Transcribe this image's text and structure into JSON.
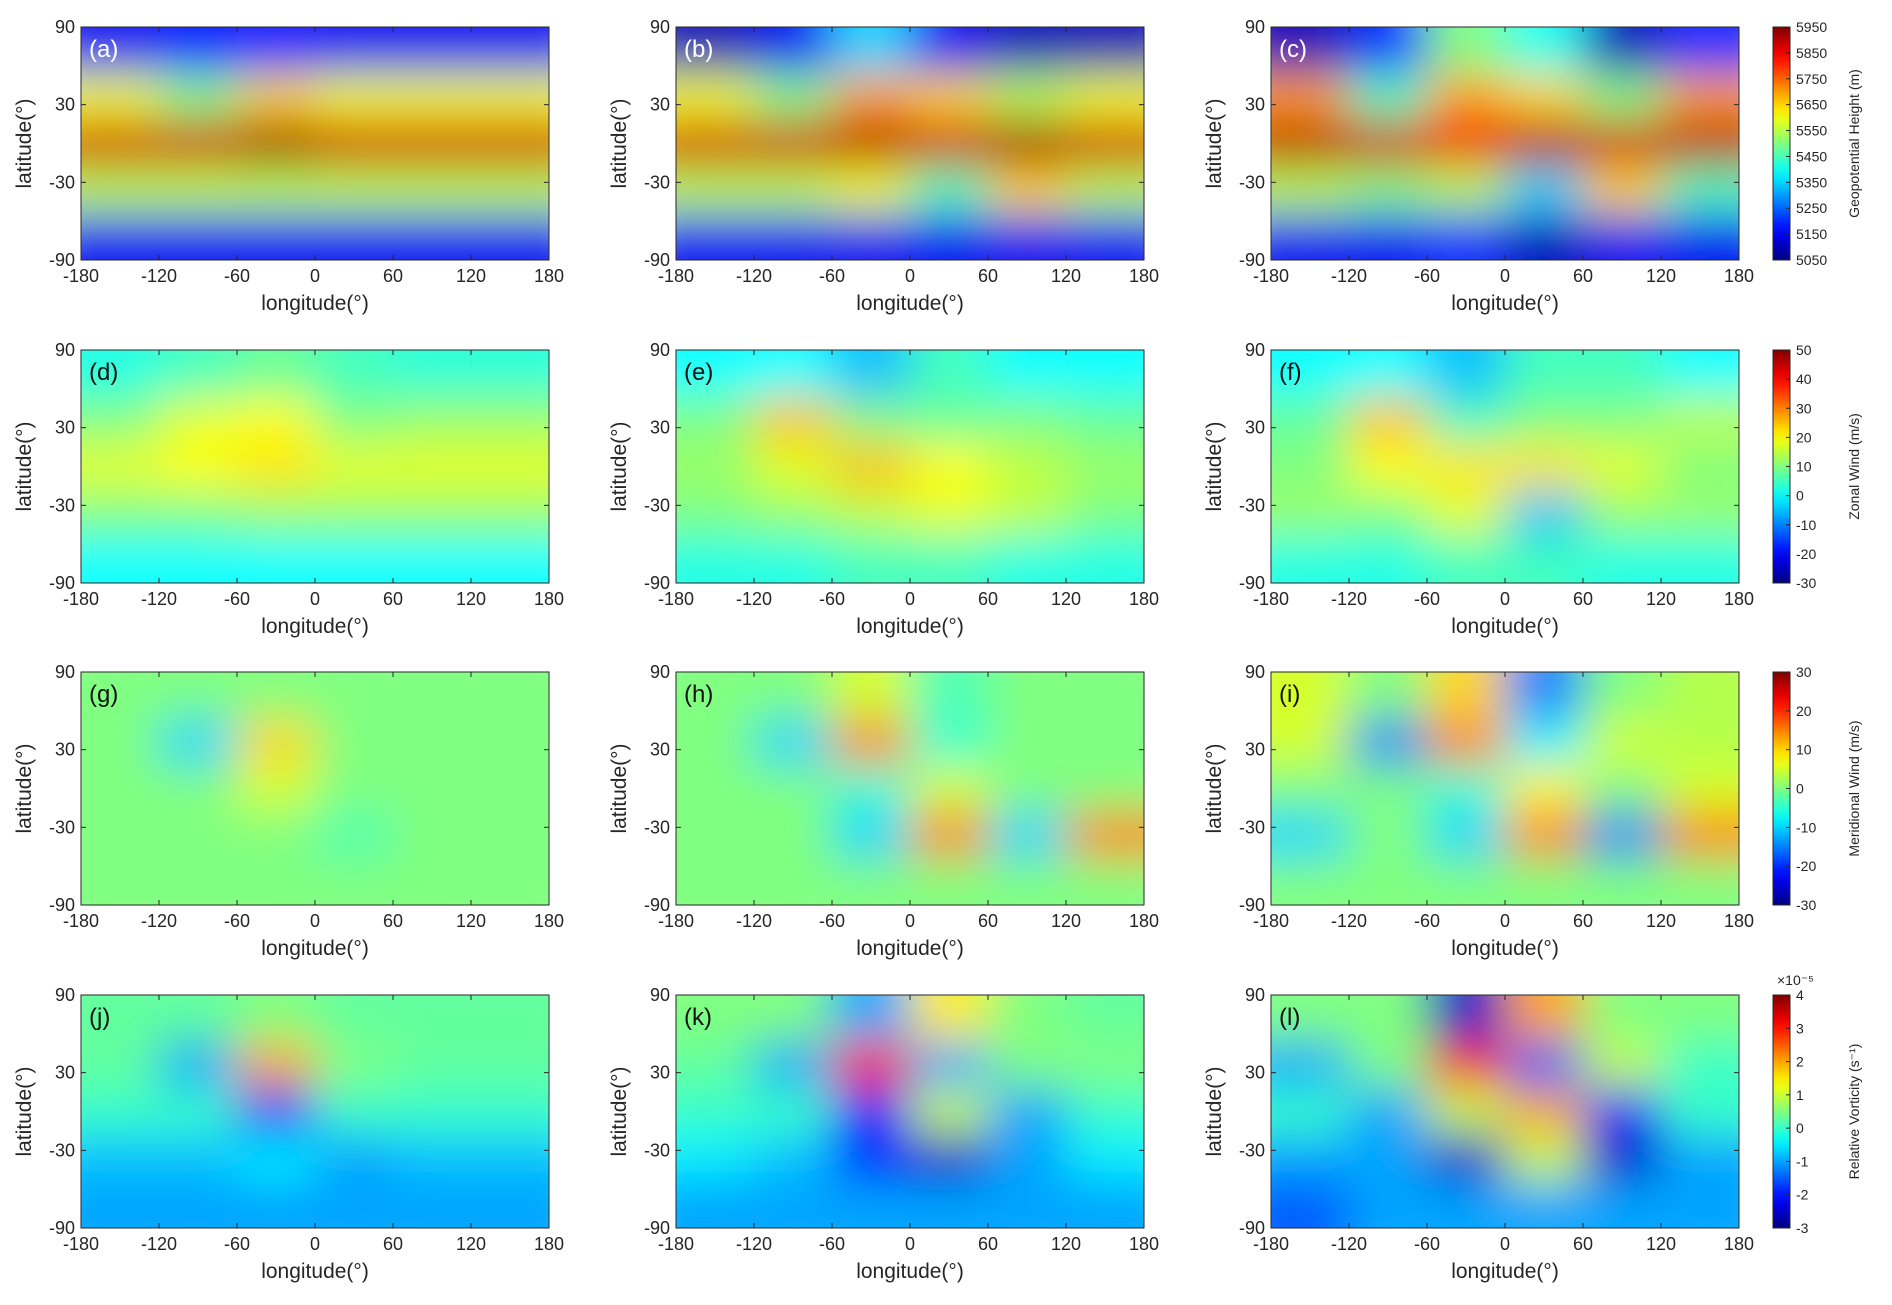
{
  "chart_data": [
    {
      "type": "heatmap",
      "label": "(a)",
      "xlabel": "longitude(°)",
      "ylabel": "latitude(°)",
      "xlim": [
        -180,
        180
      ],
      "ylim": [
        -90,
        90
      ],
      "xticks": [
        -180,
        -120,
        -60,
        0,
        60,
        120,
        180
      ],
      "yticks": [
        -90,
        -30,
        30,
        90
      ],
      "x": [
        -150,
        -90,
        -30,
        30,
        90,
        150
      ],
      "y": [
        72,
        36,
        0,
        -36,
        -72
      ],
      "zlim": [
        5050,
        5950
      ],
      "z": [
        [
          5150,
          5170,
          5180,
          5150,
          5150,
          5150
        ],
        [
          5600,
          5500,
          5650,
          5600,
          5600,
          5600
        ],
        [
          5880,
          5880,
          5920,
          5880,
          5880,
          5880
        ],
        [
          5550,
          5550,
          5550,
          5550,
          5550,
          5550
        ],
        [
          5150,
          5150,
          5150,
          5150,
          5150,
          5150
        ]
      ]
    },
    {
      "type": "heatmap",
      "label": "(b)",
      "xlabel": "longitude(°)",
      "ylabel": "latitude(°)",
      "xlim": [
        -180,
        180
      ],
      "ylim": [
        -90,
        90
      ],
      "xticks": [
        -180,
        -120,
        -60,
        0,
        60,
        120,
        180
      ],
      "yticks": [
        -90,
        -30,
        30,
        90
      ],
      "x": [
        -150,
        -90,
        -30,
        30,
        90,
        150
      ],
      "y": [
        72,
        36,
        0,
        -36,
        -72
      ],
      "zlim": [
        5050,
        5950
      ],
      "z": [
        [
          5100,
          5150,
          5350,
          5150,
          5100,
          5100
        ],
        [
          5600,
          5500,
          5700,
          5650,
          5550,
          5600
        ],
        [
          5880,
          5880,
          5900,
          5880,
          5920,
          5880
        ],
        [
          5550,
          5550,
          5600,
          5450,
          5650,
          5550
        ],
        [
          5150,
          5150,
          5150,
          5150,
          5150,
          5150
        ]
      ]
    },
    {
      "type": "heatmap",
      "label": "(c)",
      "xlabel": "longitude(°)",
      "ylabel": "latitude(°)",
      "xlim": [
        -180,
        180
      ],
      "ylim": [
        -90,
        90
      ],
      "xticks": [
        -180,
        -120,
        -60,
        0,
        60,
        120,
        180
      ],
      "yticks": [
        -90,
        -30,
        30,
        90
      ],
      "x": [
        -150,
        -90,
        -30,
        30,
        90,
        150
      ],
      "y": [
        72,
        36,
        0,
        -36,
        -72
      ],
      "zlim": [
        5050,
        5950
      ],
      "z": [
        [
          5100,
          5200,
          5500,
          5400,
          5100,
          5200
        ],
        [
          5700,
          5450,
          5700,
          5650,
          5500,
          5700
        ],
        [
          5900,
          5880,
          5850,
          5900,
          5880,
          5900
        ],
        [
          5550,
          5500,
          5550,
          5350,
          5650,
          5450
        ],
        [
          5150,
          5150,
          5200,
          5100,
          5150,
          5150
        ]
      ],
      "colorbar": {
        "label": "Geopotential Height (m)",
        "ticks": [
          5050,
          5150,
          5250,
          5350,
          5450,
          5550,
          5650,
          5750,
          5850,
          5950
        ]
      }
    },
    {
      "type": "heatmap",
      "label": "(d)",
      "xlabel": "longitude(°)",
      "ylabel": "latitude(°)",
      "xlim": [
        -180,
        180
      ],
      "ylim": [
        -90,
        90
      ],
      "xticks": [
        -180,
        -120,
        -60,
        0,
        60,
        120,
        180
      ],
      "yticks": [
        -90,
        -30,
        30,
        90
      ],
      "x": [
        -150,
        -90,
        -30,
        30,
        90,
        150
      ],
      "y": [
        72,
        36,
        0,
        -36,
        -72
      ],
      "zlim": [
        -30,
        50
      ],
      "z": [
        [
          2,
          5,
          8,
          5,
          3,
          3
        ],
        [
          10,
          18,
          20,
          10,
          12,
          12
        ],
        [
          18,
          20,
          22,
          18,
          18,
          18
        ],
        [
          10,
          10,
          12,
          12,
          12,
          12
        ],
        [
          0,
          0,
          0,
          0,
          0,
          0
        ]
      ]
    },
    {
      "type": "heatmap",
      "label": "(e)",
      "xlabel": "longitude(°)",
      "ylabel": "latitude(°)",
      "xlim": [
        -180,
        180
      ],
      "ylim": [
        -90,
        90
      ],
      "xticks": [
        -180,
        -120,
        -60,
        0,
        60,
        120,
        180
      ],
      "yticks": [
        -90,
        -30,
        30,
        90
      ],
      "x": [
        -150,
        -90,
        -30,
        30,
        90,
        150
      ],
      "y": [
        72,
        36,
        0,
        -36,
        -72
      ],
      "zlim": [
        -30,
        50
      ],
      "z": [
        [
          0,
          0,
          -5,
          5,
          0,
          0
        ],
        [
          10,
          25,
          10,
          8,
          10,
          8
        ],
        [
          12,
          18,
          25,
          20,
          15,
          12
        ],
        [
          10,
          12,
          15,
          18,
          15,
          10
        ],
        [
          2,
          2,
          5,
          5,
          2,
          2
        ]
      ]
    },
    {
      "type": "heatmap",
      "label": "(f)",
      "xlabel": "longitude(°)",
      "ylabel": "latitude(°)",
      "xlim": [
        -180,
        180
      ],
      "ylim": [
        -90,
        90
      ],
      "xticks": [
        -180,
        -120,
        -60,
        0,
        60,
        120,
        180
      ],
      "yticks": [
        -90,
        -30,
        30,
        90
      ],
      "x": [
        -150,
        -90,
        -30,
        30,
        90,
        150
      ],
      "y": [
        72,
        36,
        0,
        -36,
        -72
      ],
      "zlim": [
        -30,
        50
      ],
      "z": [
        [
          0,
          0,
          -5,
          5,
          5,
          0
        ],
        [
          8,
          25,
          5,
          10,
          10,
          15
        ],
        [
          10,
          20,
          22,
          22,
          18,
          10
        ],
        [
          12,
          10,
          18,
          -5,
          12,
          12
        ],
        [
          2,
          2,
          5,
          5,
          2,
          2
        ]
      ],
      "colorbar": {
        "label": "Zonal Wind (m/s)",
        "ticks": [
          -30,
          -20,
          -10,
          0,
          10,
          20,
          30,
          40,
          50
        ]
      }
    },
    {
      "type": "heatmap",
      "label": "(g)",
      "xlabel": "longitude(°)",
      "ylabel": "latitude(°)",
      "xlim": [
        -180,
        180
      ],
      "ylim": [
        -90,
        90
      ],
      "xticks": [
        -180,
        -120,
        -60,
        0,
        60,
        120,
        180
      ],
      "yticks": [
        -90,
        -30,
        30,
        90
      ],
      "x": [
        -150,
        -90,
        -30,
        30,
        90,
        150
      ],
      "y": [
        72,
        36,
        0,
        -36,
        -72
      ],
      "zlim": [
        -30,
        30
      ],
      "z": [
        [
          0,
          0,
          0,
          0,
          0,
          0
        ],
        [
          0,
          -10,
          10,
          0,
          0,
          0
        ],
        [
          0,
          0,
          5,
          0,
          0,
          0
        ],
        [
          0,
          0,
          0,
          -3,
          0,
          0
        ],
        [
          0,
          0,
          0,
          0,
          0,
          0
        ]
      ]
    },
    {
      "type": "heatmap",
      "label": "(h)",
      "xlabel": "longitude(°)",
      "ylabel": "latitude(°)",
      "xlim": [
        -180,
        180
      ],
      "ylim": [
        -90,
        90
      ],
      "xticks": [
        -180,
        -120,
        -60,
        0,
        60,
        120,
        180
      ],
      "yticks": [
        -90,
        -30,
        30,
        90
      ],
      "x": [
        -150,
        -90,
        -30,
        30,
        90,
        150
      ],
      "y": [
        72,
        36,
        0,
        -36,
        -72
      ],
      "zlim": [
        -30,
        30
      ],
      "z": [
        [
          0,
          0,
          5,
          -3,
          0,
          0
        ],
        [
          0,
          -10,
          15,
          -5,
          0,
          0
        ],
        [
          0,
          0,
          -5,
          5,
          0,
          0
        ],
        [
          0,
          0,
          -10,
          15,
          -10,
          15
        ],
        [
          0,
          0,
          0,
          0,
          0,
          0
        ]
      ]
    },
    {
      "type": "heatmap",
      "label": "(i)",
      "xlabel": "longitude(°)",
      "ylabel": "latitude(°)",
      "xlim": [
        -180,
        180
      ],
      "ylim": [
        -90,
        90
      ],
      "xticks": [
        -180,
        -120,
        -60,
        0,
        60,
        120,
        180
      ],
      "yticks": [
        -90,
        -30,
        30,
        90
      ],
      "x": [
        -150,
        -90,
        -30,
        30,
        90,
        150
      ],
      "y": [
        72,
        36,
        0,
        -36,
        -72
      ],
      "zlim": [
        -30,
        30
      ],
      "z": [
        [
          5,
          0,
          10,
          -15,
          0,
          3
        ],
        [
          5,
          -15,
          15,
          -8,
          5,
          3
        ],
        [
          0,
          0,
          -5,
          8,
          0,
          5
        ],
        [
          -10,
          0,
          -10,
          15,
          -15,
          15
        ],
        [
          0,
          0,
          0,
          0,
          0,
          0
        ]
      ],
      "colorbar": {
        "label": "Meridional Wind (m/s)",
        "ticks": [
          -30,
          -20,
          -10,
          0,
          10,
          20,
          30
        ]
      }
    },
    {
      "type": "heatmap",
      "label": "(j)",
      "xlabel": "longitude(°)",
      "ylabel": "latitude(°)",
      "xlim": [
        -180,
        180
      ],
      "ylim": [
        -90,
        90
      ],
      "xticks": [
        -180,
        -120,
        -60,
        0,
        60,
        120,
        180
      ],
      "yticks": [
        -90,
        -30,
        30,
        90
      ],
      "x": [
        -150,
        -90,
        -30,
        30,
        90,
        150
      ],
      "y": [
        72,
        36,
        0,
        -36,
        -72
      ],
      "zlim": [
        -3,
        4
      ],
      "z": [
        [
          0.3,
          0.3,
          0.5,
          0.3,
          0.3,
          0.3
        ],
        [
          0.3,
          -1,
          2,
          0.5,
          0.3,
          0.3
        ],
        [
          0,
          0,
          -2,
          0,
          0,
          0
        ],
        [
          -0.8,
          -0.8,
          -0.5,
          -1,
          -0.8,
          -0.8
        ],
        [
          -1,
          -1,
          -1,
          -1,
          -1,
          -1
        ]
      ]
    },
    {
      "type": "heatmap",
      "label": "(k)",
      "xlabel": "longitude(°)",
      "ylabel": "latitude(°)",
      "xlim": [
        -180,
        180
      ],
      "ylim": [
        -90,
        90
      ],
      "xticks": [
        -180,
        -120,
        -60,
        0,
        60,
        120,
        180
      ],
      "yticks": [
        -90,
        -30,
        30,
        90
      ],
      "x": [
        -150,
        -90,
        -30,
        30,
        90,
        150
      ],
      "y": [
        72,
        36,
        0,
        -36,
        -72
      ],
      "zlim": [
        -3,
        4
      ],
      "z": [
        [
          0.5,
          0.5,
          -1,
          1.5,
          0.5,
          0.3
        ],
        [
          0.3,
          -1,
          3,
          -1,
          0.5,
          0.5
        ],
        [
          0,
          0,
          -2,
          1,
          -1,
          0
        ],
        [
          -0.5,
          -0.8,
          -2,
          -2.5,
          -1,
          -0.5
        ],
        [
          -1,
          -1,
          -1,
          -1,
          -1,
          -1
        ]
      ]
    },
    {
      "type": "heatmap",
      "label": "(l)",
      "xlabel": "longitude(°)",
      "ylabel": "latitude(°)",
      "xlim": [
        -180,
        180
      ],
      "ylim": [
        -90,
        90
      ],
      "xticks": [
        -180,
        -120,
        -60,
        0,
        60,
        120,
        180
      ],
      "yticks": [
        -90,
        -30,
        30,
        90
      ],
      "x": [
        -150,
        -90,
        -30,
        30,
        90,
        150
      ],
      "y": [
        72,
        36,
        0,
        -36,
        -72
      ],
      "zlim": [
        -3,
        4
      ],
      "z": [
        [
          0.5,
          0.5,
          -2.5,
          2,
          0.5,
          0.5
        ],
        [
          -1,
          0.5,
          3,
          -1.5,
          1,
          0
        ],
        [
          0,
          -1,
          1,
          2,
          -2,
          0
        ],
        [
          -1,
          -1,
          -2.5,
          1,
          -2.5,
          -1
        ],
        [
          -1.5,
          -1,
          -1,
          -1,
          -1,
          -1
        ]
      ],
      "colorbar": {
        "label": "Relative Vorticity (s⁻¹)",
        "exponent": "×10⁻⁵",
        "ticks": [
          -3,
          -2,
          -1,
          0,
          1,
          2,
          3,
          4
        ]
      }
    }
  ]
}
